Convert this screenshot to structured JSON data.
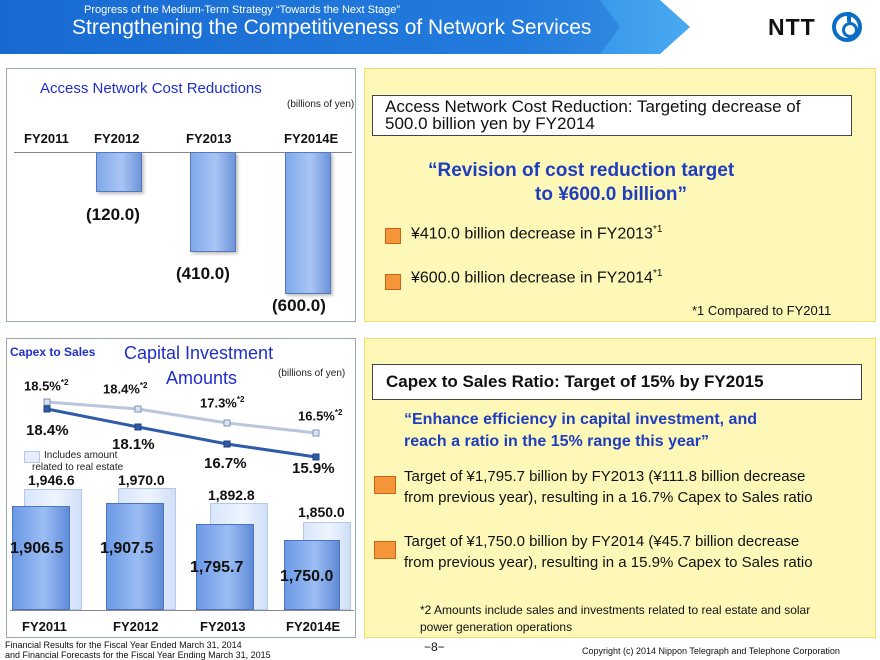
{
  "header": {
    "subtitle": "Progress of the Medium-Term Strategy “Towards the Next Stage”",
    "title": "Strengthening the Competitiveness of Network Services",
    "logo_text": "NTT"
  },
  "top_left": {
    "title": "Access Network Cost Reductions",
    "unit": "(billions of yen)",
    "years": [
      "FY2011",
      "FY2012",
      "FY2013",
      "FY2014E"
    ],
    "value_labels": [
      "(120.0)",
      "(410.0)",
      "(600.0)"
    ]
  },
  "top_right": {
    "box_title": "Access Network Cost Reduction: Targeting decrease of 500.0 billion yen by FY2014",
    "revision_line1": "“Revision of cost reduction target",
    "revision_line2": "to ¥600.0 billion”",
    "bullet1": "¥410.0 billion decrease in FY2013",
    "bullet1_sup": "*1",
    "bullet2": "¥600.0 billion decrease in FY2014",
    "bullet2_sup": "*1",
    "footnote": "*1 Compared to FY2011"
  },
  "bottom_left": {
    "capex_label": "Capex to Sales",
    "title_line1": "Capital Investment",
    "title_line2": "Amounts",
    "unit": "(billions of  yen)",
    "legend": "Includes amount related to real estate",
    "years": [
      "FY2011",
      "FY2012",
      "FY2013",
      "FY2014E"
    ],
    "ratio_incl_labels": [
      "18.5%",
      "18.4%",
      "17.3%",
      "16.5%"
    ],
    "ratio_incl_sup": "*2",
    "ratio_labels": [
      "18.4%",
      "18.1%",
      "16.7%",
      "15.9%"
    ],
    "incl_amount_labels": [
      "1,946.6",
      "1,970.0",
      "1,892.8",
      "1,850.0"
    ],
    "amount_labels": [
      "1,906.5",
      "1,907.5",
      "1,795.7",
      "1,750.0"
    ]
  },
  "bottom_right": {
    "box_title": "Capex to Sales Ratio: Target of 15% by FY2015",
    "enhance_line1": "“Enhance efficiency in capital investment, and",
    "enhance_line2": "reach a ratio in the 15% range this year”",
    "bullet1_line1": "Target of ¥1,795.7 billion by FY2013 (¥111.8 billion decrease",
    "bullet1_line2": "from previous year), resulting in a 16.7% Capex to Sales ratio",
    "bullet2_line1": "Target of ¥1,750.0 billion by FY2014 (¥45.7 billion decrease",
    "bullet2_line2": "from previous year), resulting in a 15.9% Capex to Sales ratio",
    "footnote_line1": "*2 Amounts include sales and investments related to real estate and solar",
    "footnote_line2": "power generation operations"
  },
  "footer": {
    "left_line1": "Financial Results for the Fiscal Year Ended March 31, 2014",
    "left_line2": "and Financial Forecasts for the Fiscal Year Ending March 31, 2015",
    "page": "−8−",
    "copyright": "Copyright (c) 2014  Nippon Telegraph and Telephone Corporation"
  },
  "colors": {
    "accent_blue": "#1f3dbf",
    "bullet_orange": "#f4953a",
    "panel_yellow": "#fdf8b8"
  },
  "chart_data": [
    {
      "type": "bar",
      "title": "Access Network Cost Reductions",
      "ylabel": "(billions of yen)",
      "categories": [
        "FY2011",
        "FY2012",
        "FY2013",
        "FY2014E"
      ],
      "values": [
        0,
        -120.0,
        -410.0,
        -600.0
      ]
    },
    {
      "type": "bar",
      "title": "Capital Investment Amounts",
      "ylabel": "(billions of  yen)",
      "categories": [
        "FY2011",
        "FY2012",
        "FY2013",
        "FY2014E"
      ],
      "series": [
        {
          "name": "Includes amount related to real estate",
          "values": [
            1946.6,
            1970.0,
            1892.8,
            1850.0
          ]
        },
        {
          "values": [
            1906.5,
            1907.5,
            1795.7,
            1750.0
          ]
        }
      ]
    },
    {
      "type": "line",
      "title": "Capex to Sales",
      "categories": [
        "FY2011",
        "FY2012",
        "FY2013",
        "FY2014E"
      ],
      "series": [
        {
          "values": [
            18.5,
            18.4,
            17.3,
            16.5
          ]
        },
        {
          "values": [
            18.4,
            18.1,
            16.7,
            15.9
          ]
        }
      ],
      "unit": "%"
    }
  ]
}
